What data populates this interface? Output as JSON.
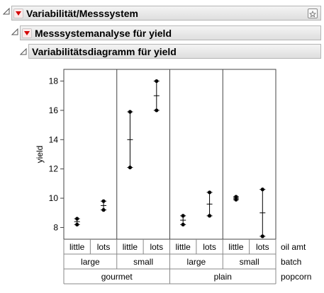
{
  "report": {
    "title": "Variabilität/Messsystem",
    "sub1": "Messsystemanalyse für yield",
    "sub2": "Variabilitätsdiagramm für yield"
  },
  "chart_data": {
    "type": "variability",
    "ylabel": "yield",
    "ylim": [
      7.2,
      18.8
    ],
    "yticks": [
      8,
      10,
      12,
      14,
      16,
      18
    ],
    "grouping_levels": [
      "oil amt",
      "batch",
      "popcorn"
    ],
    "popcorn": [
      "gourmet",
      "plain"
    ],
    "batch": [
      "large",
      "small",
      "large",
      "small"
    ],
    "oil_amt": [
      "little",
      "lots",
      "little",
      "lots",
      "little",
      "lots",
      "little",
      "lots"
    ],
    "cells": [
      {
        "popcorn": "gourmet",
        "batch": "large",
        "oil": "little",
        "points": [
          8.6,
          8.2
        ],
        "mean": 8.4
      },
      {
        "popcorn": "gourmet",
        "batch": "large",
        "oil": "lots",
        "points": [
          9.8,
          9.2
        ],
        "mean": 9.5
      },
      {
        "popcorn": "gourmet",
        "batch": "small",
        "oil": "little",
        "points": [
          15.9,
          12.1
        ],
        "mean": 14.0
      },
      {
        "popcorn": "gourmet",
        "batch": "small",
        "oil": "lots",
        "points": [
          18.0,
          16.0
        ],
        "mean": 17.0
      },
      {
        "popcorn": "plain",
        "batch": "large",
        "oil": "little",
        "points": [
          8.8,
          8.2
        ],
        "mean": 8.5
      },
      {
        "popcorn": "plain",
        "batch": "large",
        "oil": "lots",
        "points": [
          10.4,
          8.8
        ],
        "mean": 9.6
      },
      {
        "popcorn": "plain",
        "batch": "small",
        "oil": "little",
        "points": [
          10.1,
          9.9
        ],
        "mean": 10.0
      },
      {
        "popcorn": "plain",
        "batch": "small",
        "oil": "lots",
        "points": [
          10.6,
          7.4
        ],
        "mean": 9.0
      }
    ]
  }
}
